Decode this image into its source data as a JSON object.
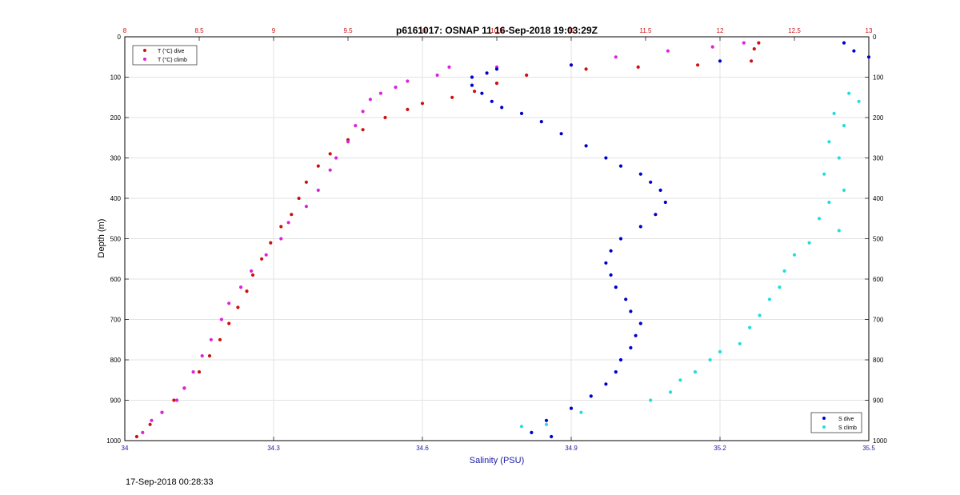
{
  "footer": {
    "timestamp": "17-Sep-2018 00:28:33"
  },
  "colors": {
    "t_dive": "#cc1111",
    "t_climb": "#dd22dd",
    "s_dive": "#0000cc",
    "s_climb": "#22dddd",
    "temp_axis": "#cc1111",
    "sal_axis": "#1a1aa6"
  },
  "chart_data": {
    "type": "scatter",
    "title": "p6161017: OSNAP 11 16-Sep-2018 19:03:29Z",
    "ylabel": "Depth (m)",
    "xlabel_bottom": "Salinity (PSU)",
    "xlabel_top": "",
    "ylim": [
      0,
      1000
    ],
    "y_reversed": true,
    "y_ticks": [
      "0",
      "100",
      "200",
      "300",
      "400",
      "500",
      "600",
      "700",
      "800",
      "900",
      "1000"
    ],
    "y_tick_values": [
      0,
      100,
      200,
      300,
      400,
      500,
      600,
      700,
      800,
      900,
      1000
    ],
    "xlim_bottom": [
      34,
      35.5
    ],
    "x_bottom_ticks": [
      "34",
      "34.3",
      "34.6",
      "34.9",
      "35.2",
      "35.5"
    ],
    "x_bottom_tick_values": [
      34,
      34.3,
      34.6,
      34.9,
      35.2,
      35.5
    ],
    "xlim_top": [
      8,
      13
    ],
    "x_top_ticks": [
      "8",
      "8.5",
      "9",
      "9.5",
      "10",
      "10.5",
      "11",
      "11.5",
      "12",
      "12.5",
      "13"
    ],
    "x_top_tick_values": [
      8,
      8.5,
      9,
      9.5,
      10,
      10.5,
      11,
      11.5,
      12,
      12.5,
      13
    ],
    "grid": true,
    "legend_top_left": [
      "T (°C) dive",
      "T (°C) climb"
    ],
    "legend_bottom_right": [
      "S dive",
      "S climb"
    ],
    "series": [
      {
        "name": "T (°C) dive",
        "axis": "top",
        "points": [
          [
            12.26,
            15
          ],
          [
            12.23,
            30
          ],
          [
            12.21,
            60
          ],
          [
            11.85,
            70
          ],
          [
            11.45,
            75
          ],
          [
            11.1,
            80
          ],
          [
            10.7,
            95
          ],
          [
            10.5,
            115
          ],
          [
            10.35,
            135
          ],
          [
            10.2,
            150
          ],
          [
            10.0,
            165
          ],
          [
            9.9,
            180
          ],
          [
            9.75,
            200
          ],
          [
            9.6,
            230
          ],
          [
            9.5,
            255
          ],
          [
            9.38,
            290
          ],
          [
            9.3,
            320
          ],
          [
            9.22,
            360
          ],
          [
            9.17,
            400
          ],
          [
            9.12,
            440
          ],
          [
            9.05,
            470
          ],
          [
            8.98,
            510
          ],
          [
            8.92,
            550
          ],
          [
            8.86,
            590
          ],
          [
            8.82,
            630
          ],
          [
            8.76,
            670
          ],
          [
            8.7,
            710
          ],
          [
            8.64,
            750
          ],
          [
            8.57,
            790
          ],
          [
            8.5,
            830
          ],
          [
            8.4,
            870
          ],
          [
            8.33,
            900
          ],
          [
            8.25,
            930
          ],
          [
            8.17,
            960
          ],
          [
            8.08,
            990
          ]
        ]
      },
      {
        "name": "T (°C) climb",
        "axis": "top",
        "points": [
          [
            12.16,
            15
          ],
          [
            11.95,
            25
          ],
          [
            11.65,
            35
          ],
          [
            11.3,
            50
          ],
          [
            11.0,
            70
          ],
          [
            10.5,
            75
          ],
          [
            10.18,
            75
          ],
          [
            10.1,
            95
          ],
          [
            9.9,
            110
          ],
          [
            9.82,
            125
          ],
          [
            9.72,
            140
          ],
          [
            9.65,
            155
          ],
          [
            9.6,
            185
          ],
          [
            9.55,
            220
          ],
          [
            9.5,
            260
          ],
          [
            9.42,
            300
          ],
          [
            9.38,
            330
          ],
          [
            9.3,
            380
          ],
          [
            9.22,
            420
          ],
          [
            9.1,
            460
          ],
          [
            9.05,
            500
          ],
          [
            8.95,
            540
          ],
          [
            8.85,
            580
          ],
          [
            8.78,
            620
          ],
          [
            8.7,
            660
          ],
          [
            8.65,
            700
          ],
          [
            8.58,
            750
          ],
          [
            8.52,
            790
          ],
          [
            8.46,
            830
          ],
          [
            8.4,
            870
          ],
          [
            8.35,
            900
          ],
          [
            8.25,
            930
          ],
          [
            8.18,
            950
          ],
          [
            8.12,
            980
          ]
        ]
      },
      {
        "name": "S dive",
        "axis": "bottom",
        "points": [
          [
            35.45,
            15
          ],
          [
            35.47,
            35
          ],
          [
            35.5,
            50
          ],
          [
            35.2,
            60
          ],
          [
            34.9,
            70
          ],
          [
            34.75,
            80
          ],
          [
            34.73,
            90
          ],
          [
            34.7,
            100
          ],
          [
            34.7,
            120
          ],
          [
            34.72,
            140
          ],
          [
            34.74,
            160
          ],
          [
            34.76,
            175
          ],
          [
            34.8,
            190
          ],
          [
            34.84,
            210
          ],
          [
            34.88,
            240
          ],
          [
            34.93,
            270
          ],
          [
            34.97,
            300
          ],
          [
            35.0,
            320
          ],
          [
            35.04,
            340
          ],
          [
            35.06,
            360
          ],
          [
            35.08,
            380
          ],
          [
            35.09,
            410
          ],
          [
            35.07,
            440
          ],
          [
            35.04,
            470
          ],
          [
            35.0,
            500
          ],
          [
            34.98,
            530
          ],
          [
            34.97,
            560
          ],
          [
            34.98,
            590
          ],
          [
            34.99,
            620
          ],
          [
            35.01,
            650
          ],
          [
            35.02,
            680
          ],
          [
            35.04,
            710
          ],
          [
            35.03,
            740
          ],
          [
            35.02,
            770
          ],
          [
            35.0,
            800
          ],
          [
            34.99,
            830
          ],
          [
            34.97,
            860
          ],
          [
            34.94,
            890
          ],
          [
            34.9,
            920
          ],
          [
            34.85,
            950
          ],
          [
            34.82,
            980
          ],
          [
            34.86,
            990
          ]
        ]
      },
      {
        "name": "S climb",
        "axis": "bottom",
        "points": [
          [
            35.46,
            140
          ],
          [
            35.48,
            160
          ],
          [
            35.43,
            190
          ],
          [
            35.45,
            220
          ],
          [
            35.42,
            260
          ],
          [
            35.44,
            300
          ],
          [
            35.41,
            340
          ],
          [
            35.45,
            380
          ],
          [
            35.42,
            410
          ],
          [
            35.4,
            450
          ],
          [
            35.44,
            480
          ],
          [
            35.38,
            510
          ],
          [
            35.35,
            540
          ],
          [
            35.33,
            580
          ],
          [
            35.32,
            620
          ],
          [
            35.3,
            650
          ],
          [
            35.28,
            690
          ],
          [
            35.26,
            720
          ],
          [
            35.24,
            760
          ],
          [
            35.2,
            780
          ],
          [
            35.18,
            800
          ],
          [
            35.15,
            830
          ],
          [
            35.12,
            850
          ],
          [
            35.1,
            880
          ],
          [
            35.06,
            900
          ],
          [
            34.92,
            930
          ],
          [
            34.85,
            960
          ],
          [
            34.8,
            965
          ]
        ]
      }
    ]
  }
}
